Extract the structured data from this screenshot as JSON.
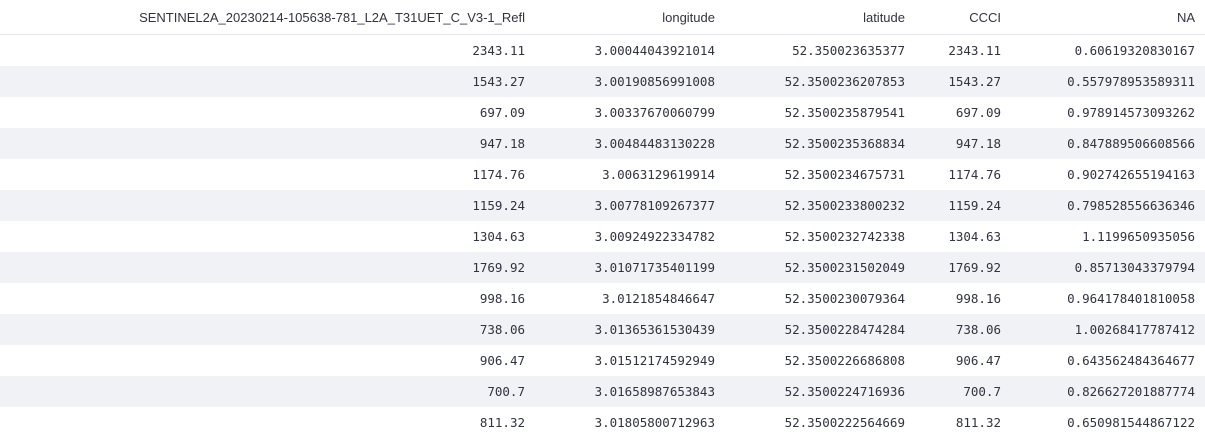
{
  "table": {
    "columns": [
      "SENTINEL2A_20230214-105638-781_L2A_T31UET_C_V3-1_Refl",
      "longitude",
      "latitude",
      "CCCI",
      "NA"
    ],
    "rows": [
      [
        "2343.11",
        "3.00044043921014",
        "52.350023635377",
        "2343.11",
        "0.60619320830167"
      ],
      [
        "1543.27",
        "3.00190856991008",
        "52.3500236207853",
        "1543.27",
        "0.557978953589311"
      ],
      [
        "697.09",
        "3.00337670060799",
        "52.3500235879541",
        "697.09",
        "0.978914573093262"
      ],
      [
        "947.18",
        "3.00484483130228",
        "52.3500235368834",
        "947.18",
        "0.847889506608566"
      ],
      [
        "1174.76",
        "3.0063129619914",
        "52.3500234675731",
        "1174.76",
        "0.902742655194163"
      ],
      [
        "1159.24",
        "3.00778109267377",
        "52.3500233800232",
        "1159.24",
        "0.798528556636346"
      ],
      [
        "1304.63",
        "3.00924922334782",
        "52.3500232742338",
        "1304.63",
        "1.1199650935056"
      ],
      [
        "1769.92",
        "3.01071735401199",
        "52.3500231502049",
        "1769.92",
        "0.85713043379794"
      ],
      [
        "998.16",
        "3.0121854846647",
        "52.3500230079364",
        "998.16",
        "0.964178401810058"
      ],
      [
        "738.06",
        "3.01365361530439",
        "52.3500228474284",
        "738.06",
        "1.00268417787412"
      ],
      [
        "906.47",
        "3.01512174592949",
        "52.3500226686808",
        "906.47",
        "0.643562484364677"
      ],
      [
        "700.7",
        "3.01658987653843",
        "52.3500224716936",
        "700.7",
        "0.826627201887774"
      ],
      [
        "811.32",
        "3.01805800712963",
        "52.3500222564669",
        "811.32",
        "0.650981544867122"
      ]
    ]
  }
}
